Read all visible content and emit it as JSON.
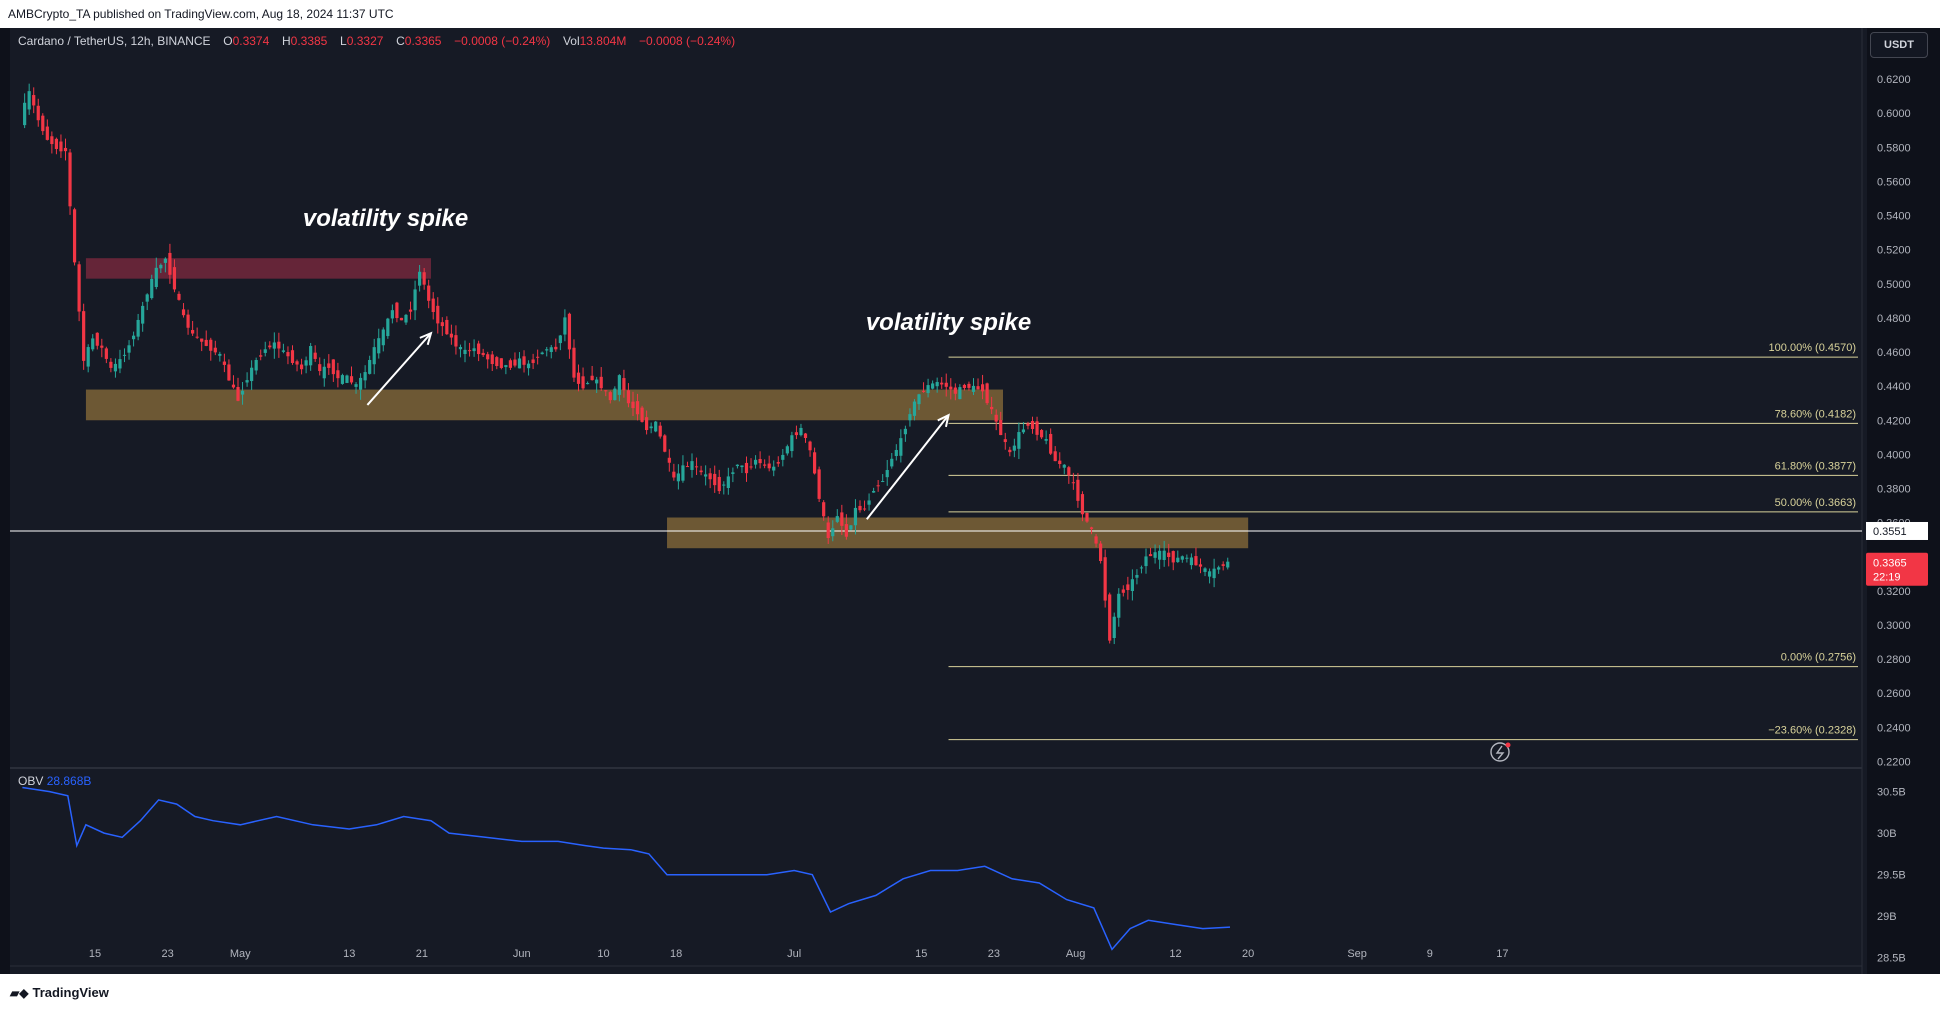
{
  "publish_line": "AMBCrypto_TA published on TradingView.com, Aug 18, 2024 11:37 UTC",
  "legend": {
    "symbol": "Cardano / TetherUS, 12h, BINANCE",
    "o_label": "O",
    "o_value": "0.3374",
    "h_label": "H",
    "h_value": "0.3385",
    "l_label": "L",
    "l_value": "0.3327",
    "c_label": "C",
    "c_value": "0.3365",
    "change": "−0.0008 (−0.24%)",
    "vol_label": "Vol",
    "vol_value": "13.804M",
    "vol_change": "−0.0008 (−0.24%)"
  },
  "currency_button": "USDT",
  "obv_legend": {
    "label": "OBV",
    "value": "28.868B"
  },
  "footer_brand": "TradingView",
  "colors": {
    "up": "#26a69a",
    "down": "#f23645",
    "fib": "#d8d29a",
    "obv": "#2962ff",
    "zone_sand": "#7c6437",
    "zone_red": "#73283c",
    "background": "#161a25"
  },
  "chart_data": [
    {
      "type": "candlestick",
      "symbol": "Cardano / TetherUS",
      "timeframe": "12h",
      "ylim": [
        0.215,
        0.63
      ],
      "x_ticks": [
        {
          "label": "15",
          "date": "2024-04-15"
        },
        {
          "label": "23",
          "date": "2024-04-23"
        },
        {
          "label": "May",
          "date": "2024-05-01"
        },
        {
          "label": "13",
          "date": "2024-05-13"
        },
        {
          "label": "21",
          "date": "2024-05-21"
        },
        {
          "label": "Jun",
          "date": "2024-06-01"
        },
        {
          "label": "10",
          "date": "2024-06-10"
        },
        {
          "label": "18",
          "date": "2024-06-18"
        },
        {
          "label": "Jul",
          "date": "2024-07-01"
        },
        {
          "label": "15",
          "date": "2024-07-15"
        },
        {
          "label": "23",
          "date": "2024-07-23"
        },
        {
          "label": "Aug",
          "date": "2024-08-01"
        },
        {
          "label": "12",
          "date": "2024-08-12"
        },
        {
          "label": "20",
          "date": "2024-08-20"
        },
        {
          "label": "Sep",
          "date": "2024-09-01"
        },
        {
          "label": "9",
          "date": "2024-09-09"
        },
        {
          "label": "17",
          "date": "2024-09-17"
        }
      ],
      "y_ticks": [
        "0.6200",
        "0.6000",
        "0.5800",
        "0.5600",
        "0.5400",
        "0.5200",
        "0.5000",
        "0.4800",
        "0.4600",
        "0.4400",
        "0.4200",
        "0.4000",
        "0.3800",
        "0.3600",
        "0.3400",
        "0.3200",
        "0.3000",
        "0.2800",
        "0.2600",
        "0.2400",
        "0.2200"
      ],
      "price_path": [
        [
          "2024-04-07",
          0.597
        ],
        [
          "2024-04-08",
          0.612
        ],
        [
          "2024-04-09",
          0.596
        ],
        [
          "2024-04-10",
          0.585
        ],
        [
          "2024-04-11",
          0.58
        ],
        [
          "2024-04-12",
          0.578
        ],
        [
          "2024-04-13",
          0.512
        ],
        [
          "2024-04-14",
          0.455
        ],
        [
          "2024-04-15",
          0.468
        ],
        [
          "2024-04-16",
          0.462
        ],
        [
          "2024-04-17",
          0.45
        ],
        [
          "2024-04-18",
          0.455
        ],
        [
          "2024-04-19",
          0.464
        ],
        [
          "2024-04-20",
          0.478
        ],
        [
          "2024-04-21",
          0.495
        ],
        [
          "2024-04-22",
          0.508
        ],
        [
          "2024-04-23",
          0.515
        ],
        [
          "2024-04-24",
          0.498
        ],
        [
          "2024-04-25",
          0.48
        ],
        [
          "2024-04-26",
          0.47
        ],
        [
          "2024-04-27",
          0.466
        ],
        [
          "2024-04-28",
          0.462
        ],
        [
          "2024-04-29",
          0.458
        ],
        [
          "2024-04-30",
          0.444
        ],
        [
          "2024-05-01",
          0.432
        ],
        [
          "2024-05-02",
          0.445
        ],
        [
          "2024-05-03",
          0.455
        ],
        [
          "2024-05-04",
          0.462
        ],
        [
          "2024-05-05",
          0.465
        ],
        [
          "2024-05-06",
          0.46
        ],
        [
          "2024-05-07",
          0.455
        ],
        [
          "2024-05-08",
          0.45
        ],
        [
          "2024-05-09",
          0.462
        ],
        [
          "2024-05-10",
          0.448
        ],
        [
          "2024-05-11",
          0.452
        ],
        [
          "2024-05-12",
          0.445
        ],
        [
          "2024-05-13",
          0.445
        ],
        [
          "2024-05-14",
          0.44
        ],
        [
          "2024-05-15",
          0.448
        ],
        [
          "2024-05-16",
          0.462
        ],
        [
          "2024-05-17",
          0.472
        ],
        [
          "2024-05-18",
          0.485
        ],
        [
          "2024-05-19",
          0.478
        ],
        [
          "2024-05-20",
          0.485
        ],
        [
          "2024-05-21",
          0.508
        ],
        [
          "2024-05-22",
          0.49
        ],
        [
          "2024-05-23",
          0.478
        ],
        [
          "2024-05-24",
          0.472
        ],
        [
          "2024-05-25",
          0.464
        ],
        [
          "2024-05-26",
          0.46
        ],
        [
          "2024-05-27",
          0.462
        ],
        [
          "2024-05-28",
          0.458
        ],
        [
          "2024-05-29",
          0.454
        ],
        [
          "2024-05-30",
          0.452
        ],
        [
          "2024-05-31",
          0.452
        ],
        [
          "2024-06-01",
          0.455
        ],
        [
          "2024-06-02",
          0.452
        ],
        [
          "2024-06-03",
          0.458
        ],
        [
          "2024-06-04",
          0.462
        ],
        [
          "2024-06-05",
          0.462
        ],
        [
          "2024-06-06",
          0.48
        ],
        [
          "2024-06-07",
          0.445
        ],
        [
          "2024-06-08",
          0.44
        ],
        [
          "2024-06-09",
          0.445
        ],
        [
          "2024-06-10",
          0.44
        ],
        [
          "2024-06-11",
          0.432
        ],
        [
          "2024-06-12",
          0.445
        ],
        [
          "2024-06-13",
          0.43
        ],
        [
          "2024-06-14",
          0.425
        ],
        [
          "2024-06-15",
          0.415
        ],
        [
          "2024-06-16",
          0.418
        ],
        [
          "2024-06-17",
          0.402
        ],
        [
          "2024-06-18",
          0.385
        ],
        [
          "2024-06-19",
          0.392
        ],
        [
          "2024-06-20",
          0.395
        ],
        [
          "2024-06-21",
          0.389
        ],
        [
          "2024-06-22",
          0.386
        ],
        [
          "2024-06-23",
          0.38
        ],
        [
          "2024-06-24",
          0.386
        ],
        [
          "2024-06-25",
          0.395
        ],
        [
          "2024-06-26",
          0.39
        ],
        [
          "2024-06-27",
          0.397
        ],
        [
          "2024-06-28",
          0.393
        ],
        [
          "2024-06-29",
          0.392
        ],
        [
          "2024-06-30",
          0.4
        ],
        [
          "2024-07-01",
          0.41
        ],
        [
          "2024-07-02",
          0.415
        ],
        [
          "2024-07-03",
          0.402
        ],
        [
          "2024-07-04",
          0.375
        ],
        [
          "2024-07-05",
          0.35
        ],
        [
          "2024-07-06",
          0.365
        ],
        [
          "2024-07-07",
          0.352
        ],
        [
          "2024-07-08",
          0.368
        ],
        [
          "2024-07-09",
          0.368
        ],
        [
          "2024-07-10",
          0.38
        ],
        [
          "2024-07-11",
          0.385
        ],
        [
          "2024-07-12",
          0.398
        ],
        [
          "2024-07-13",
          0.408
        ],
        [
          "2024-07-14",
          0.425
        ],
        [
          "2024-07-15",
          0.435
        ],
        [
          "2024-07-16",
          0.44
        ],
        [
          "2024-07-17",
          0.442
        ],
        [
          "2024-07-18",
          0.44
        ],
        [
          "2024-07-19",
          0.436
        ],
        [
          "2024-07-20",
          0.44
        ],
        [
          "2024-07-21",
          0.439
        ],
        [
          "2024-07-22",
          0.438
        ],
        [
          "2024-07-23",
          0.425
        ],
        [
          "2024-07-24",
          0.412
        ],
        [
          "2024-07-25",
          0.4
        ],
        [
          "2024-07-26",
          0.412
        ],
        [
          "2024-07-27",
          0.418
        ],
        [
          "2024-07-28",
          0.413
        ],
        [
          "2024-07-29",
          0.408
        ],
        [
          "2024-07-30",
          0.396
        ],
        [
          "2024-07-31",
          0.393
        ],
        [
          "2024-08-01",
          0.382
        ],
        [
          "2024-08-02",
          0.366
        ],
        [
          "2024-08-03",
          0.355
        ],
        [
          "2024-08-04",
          0.338
        ],
        [
          "2024-08-05",
          0.292
        ],
        [
          "2024-08-06",
          0.318
        ],
        [
          "2024-08-07",
          0.322
        ],
        [
          "2024-08-08",
          0.33
        ],
        [
          "2024-08-09",
          0.34
        ],
        [
          "2024-08-10",
          0.342
        ],
        [
          "2024-08-11",
          0.342
        ],
        [
          "2024-08-12",
          0.338
        ],
        [
          "2024-08-13",
          0.34
        ],
        [
          "2024-08-14",
          0.338
        ],
        [
          "2024-08-15",
          0.334
        ],
        [
          "2024-08-16",
          0.33
        ],
        [
          "2024-08-17",
          0.334
        ],
        [
          "2024-08-18",
          0.3365
        ]
      ],
      "zones": [
        {
          "style": "red",
          "from": "2024-04-14",
          "to": "2024-05-22",
          "low": 0.503,
          "high": 0.515
        },
        {
          "style": "sand",
          "from": "2024-04-14",
          "to": "2024-07-24",
          "low": 0.42,
          "high": 0.438
        },
        {
          "style": "sand",
          "from": "2024-06-17",
          "to": "2024-08-20",
          "low": 0.345,
          "high": 0.363
        }
      ],
      "horizontal_line": {
        "value": 0.3551,
        "label": "0.3551"
      },
      "fib_levels": [
        {
          "label": "100.00% (0.4570)",
          "value": 0.457
        },
        {
          "label": "78.60% (0.4182)",
          "value": 0.4182
        },
        {
          "label": "61.80% (0.3877)",
          "value": 0.3877
        },
        {
          "label": "50.00% (0.3663)",
          "value": 0.3663
        },
        {
          "label": "0.00% (0.2756)",
          "value": 0.2756
        },
        {
          "label": "−23.60% (0.2328)",
          "value": 0.2328
        }
      ],
      "fib_start": "2024-07-18",
      "annotations": [
        {
          "text": "volatility spike",
          "date": "2024-05-17",
          "value": 0.534
        },
        {
          "text": "volatility spike",
          "date": "2024-07-18",
          "value": 0.473
        }
      ],
      "arrows": [
        {
          "from": [
            "2024-05-15",
            0.429
          ],
          "to": [
            "2024-05-22",
            0.471
          ]
        },
        {
          "from": [
            "2024-07-09",
            0.362
          ],
          "to": [
            "2024-07-18",
            0.423
          ]
        }
      ],
      "last_price": {
        "value": 0.3365,
        "label": "0.3365",
        "countdown": "22:19"
      }
    },
    {
      "type": "line",
      "series": [
        {
          "name": "OBV",
          "points": [
            [
              "2024-04-07",
              30.55
            ],
            [
              "2024-04-10",
              30.5
            ],
            [
              "2024-04-12",
              30.45
            ],
            [
              "2024-04-13",
              29.85
            ],
            [
              "2024-04-14",
              30.1
            ],
            [
              "2024-04-16",
              30.0
            ],
            [
              "2024-04-18",
              29.95
            ],
            [
              "2024-04-20",
              30.15
            ],
            [
              "2024-04-22",
              30.4
            ],
            [
              "2024-04-24",
              30.35
            ],
            [
              "2024-04-26",
              30.2
            ],
            [
              "2024-04-28",
              30.15
            ],
            [
              "2024-05-01",
              30.1
            ],
            [
              "2024-05-05",
              30.2
            ],
            [
              "2024-05-09",
              30.1
            ],
            [
              "2024-05-13",
              30.05
            ],
            [
              "2024-05-16",
              30.1
            ],
            [
              "2024-05-19",
              30.2
            ],
            [
              "2024-05-22",
              30.15
            ],
            [
              "2024-05-24",
              30.0
            ],
            [
              "2024-05-28",
              29.95
            ],
            [
              "2024-06-01",
              29.9
            ],
            [
              "2024-06-05",
              29.9
            ],
            [
              "2024-06-08",
              29.85
            ],
            [
              "2024-06-10",
              29.82
            ],
            [
              "2024-06-13",
              29.8
            ],
            [
              "2024-06-15",
              29.75
            ],
            [
              "2024-06-17",
              29.5
            ],
            [
              "2024-06-20",
              29.5
            ],
            [
              "2024-06-24",
              29.5
            ],
            [
              "2024-06-28",
              29.5
            ],
            [
              "2024-07-01",
              29.55
            ],
            [
              "2024-07-03",
              29.5
            ],
            [
              "2024-07-05",
              29.05
            ],
            [
              "2024-07-07",
              29.15
            ],
            [
              "2024-07-10",
              29.25
            ],
            [
              "2024-07-13",
              29.45
            ],
            [
              "2024-07-16",
              29.55
            ],
            [
              "2024-07-19",
              29.55
            ],
            [
              "2024-07-22",
              29.6
            ],
            [
              "2024-07-25",
              29.45
            ],
            [
              "2024-07-28",
              29.4
            ],
            [
              "2024-07-31",
              29.2
            ],
            [
              "2024-08-03",
              29.1
            ],
            [
              "2024-08-05",
              28.6
            ],
            [
              "2024-08-07",
              28.85
            ],
            [
              "2024-08-09",
              28.95
            ],
            [
              "2024-08-12",
              28.9
            ],
            [
              "2024-08-15",
              28.85
            ],
            [
              "2024-08-18",
              28.868
            ]
          ]
        }
      ],
      "ylim": [
        28.4,
        30.7
      ],
      "y_ticks": [
        "30.5B",
        "30B",
        "29.5B",
        "29B",
        "28.5B"
      ]
    }
  ]
}
